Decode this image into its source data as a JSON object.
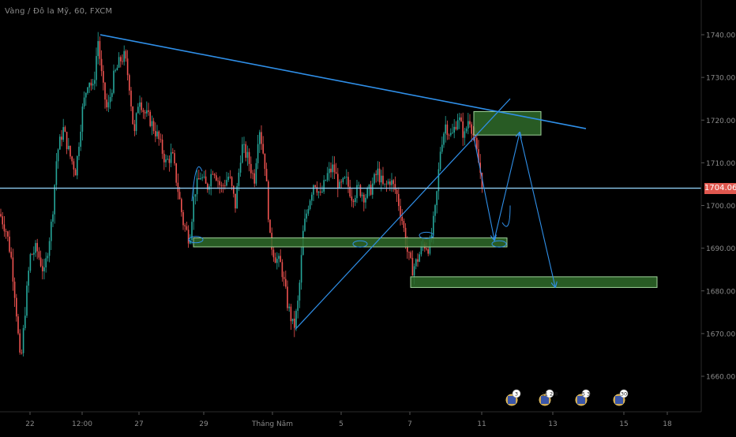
{
  "header": {
    "symbol_title": "Vàng / Đô la Mỹ, 60, FXCM"
  },
  "price_axis": {
    "ticks": [
      "1740.00",
      "1730.00",
      "1720.00",
      "1710.00",
      "1700.00",
      "1690.00",
      "1680.00",
      "1670.00",
      "1660.00"
    ],
    "tick_values": [
      1740,
      1730,
      1720,
      1710,
      1700,
      1690,
      1680,
      1670,
      1660
    ],
    "current_price_label": "1704.06",
    "current_price": 1704.06
  },
  "time_axis": {
    "labels": [
      "22",
      "12:00",
      "27",
      "29",
      "Tháng Năm",
      "5",
      "7",
      "11",
      "13",
      "15",
      "18"
    ]
  },
  "events": [
    {
      "badge": "3"
    },
    {
      "badge": "11 2 8"
    },
    {
      "badge": "5 3"
    },
    {
      "badge": "30"
    }
  ],
  "colors": {
    "background": "#000000",
    "bull": "#26a69a",
    "bear": "#ef5350",
    "trendline": "#2f8fe8",
    "zone_fill": "#2f6b2a",
    "zone_border": "#9fd39a",
    "price_line": "#8ecbf0",
    "price_tag": "#e0584f",
    "axis_text": "#8a8a8a"
  },
  "chart_data": {
    "type": "candlestick",
    "title": "Vàng / Đô la Mỹ, 60, FXCM",
    "ylim": [
      1652,
      1746
    ],
    "grid": false,
    "price_path": [
      [
        0,
        1698
      ],
      [
        8,
        1694
      ],
      [
        14,
        1688
      ],
      [
        20,
        1677
      ],
      [
        26,
        1662
      ],
      [
        32,
        1676
      ],
      [
        38,
        1688
      ],
      [
        46,
        1690
      ],
      [
        56,
        1684
      ],
      [
        66,
        1697
      ],
      [
        72,
        1712
      ],
      [
        80,
        1718
      ],
      [
        88,
        1712
      ],
      [
        96,
        1708
      ],
      [
        104,
        1722
      ],
      [
        112,
        1730
      ],
      [
        118,
        1727
      ],
      [
        124,
        1739
      ],
      [
        130,
        1728
      ],
      [
        136,
        1722
      ],
      [
        144,
        1730
      ],
      [
        152,
        1734
      ],
      [
        158,
        1735
      ],
      [
        164,
        1728
      ],
      [
        170,
        1716
      ],
      [
        176,
        1726
      ],
      [
        182,
        1722
      ],
      [
        190,
        1720
      ],
      [
        200,
        1716
      ],
      [
        210,
        1710
      ],
      [
        218,
        1712
      ],
      [
        226,
        1703
      ],
      [
        232,
        1696
      ],
      [
        240,
        1692
      ],
      [
        246,
        1703
      ],
      [
        254,
        1707
      ],
      [
        262,
        1704
      ],
      [
        270,
        1709
      ],
      [
        280,
        1704
      ],
      [
        290,
        1707
      ],
      [
        298,
        1700
      ],
      [
        306,
        1714
      ],
      [
        314,
        1711
      ],
      [
        322,
        1706
      ],
      [
        328,
        1719
      ],
      [
        336,
        1709
      ],
      [
        342,
        1692
      ],
      [
        348,
        1688
      ],
      [
        356,
        1686
      ],
      [
        364,
        1677
      ],
      [
        372,
        1671
      ],
      [
        378,
        1678
      ],
      [
        384,
        1694
      ],
      [
        390,
        1700
      ],
      [
        398,
        1706
      ],
      [
        406,
        1702
      ],
      [
        414,
        1707
      ],
      [
        422,
        1709
      ],
      [
        430,
        1704
      ],
      [
        438,
        1706
      ],
      [
        446,
        1702
      ],
      [
        454,
        1704
      ],
      [
        462,
        1702
      ],
      [
        470,
        1704
      ],
      [
        478,
        1708
      ],
      [
        486,
        1704
      ],
      [
        494,
        1706
      ],
      [
        502,
        1703
      ],
      [
        510,
        1696
      ],
      [
        516,
        1689
      ],
      [
        522,
        1685
      ],
      [
        528,
        1687
      ],
      [
        536,
        1691
      ],
      [
        544,
        1690
      ],
      [
        552,
        1700
      ],
      [
        558,
        1714
      ],
      [
        564,
        1719
      ],
      [
        572,
        1716
      ],
      [
        580,
        1721
      ],
      [
        588,
        1716
      ],
      [
        594,
        1721
      ],
      [
        600,
        1716
      ],
      [
        606,
        1710
      ],
      [
        612,
        1704
      ]
    ],
    "annotations": {
      "descending_trendline": {
        "from": [
          127,
          1740
        ],
        "to": [
          742,
          1718
        ]
      },
      "ascending_trendline": {
        "from": [
          374,
          1671
        ],
        "to": [
          646,
          1725
        ]
      },
      "support_zone": {
        "x": [
          245,
          642
        ],
        "y": [
          1690.3,
          1692.4
        ]
      },
      "lower_target_zone": {
        "x": [
          520,
          832
        ],
        "y": [
          1680.8,
          1683.3
        ]
      },
      "upper_resistance_zone": {
        "x": [
          600,
          685
        ],
        "y": [
          1716.5,
          1722
        ]
      },
      "forecast_path": [
        [
          600,
          1716
        ],
        [
          626,
          1692
        ],
        [
          658,
          1717
        ],
        [
          703,
          1681
        ]
      ]
    }
  }
}
